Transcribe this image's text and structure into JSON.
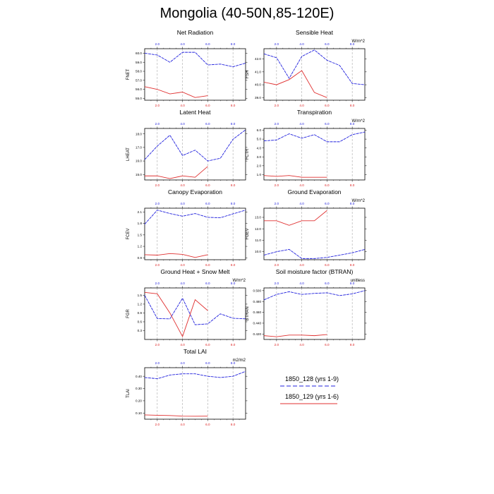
{
  "title": "Mongolia (40-50N,85-120E)",
  "colors": {
    "case1": "#2222dd",
    "case2": "#e03030",
    "frame": "#000000",
    "guide": "#999999"
  },
  "legend": {
    "items": [
      {
        "label": "1850_128 (yrs 1-9)",
        "color": "#2222dd",
        "style": "dashed"
      },
      {
        "label": "1850_129 (yrs 1-6)",
        "color": "#e03030",
        "style": "solid"
      }
    ]
  },
  "chart_data": [
    {
      "type": "line",
      "title": "Net Radiation",
      "ylabel": "FNET",
      "units": "",
      "xlim": [
        1,
        9
      ],
      "ylim": [
        54.8,
        60.5
      ],
      "x_top_ticks": [
        "2.0",
        "4.0",
        "6.0",
        "8.0"
      ],
      "x_bottom_ticks": [
        "2.0",
        "4.0",
        "6.0",
        "8.0"
      ],
      "yticks": [
        55.0,
        56.0,
        57.0,
        58.0,
        59.0,
        60.0
      ],
      "ytick_labels": [
        "55.0",
        "56.0",
        "57.0",
        "58.0",
        "59.0",
        "60.0"
      ],
      "series": [
        {
          "name": "1850_128 (yrs 1-9)",
          "x": [
            1,
            2,
            3,
            4,
            5,
            6,
            7,
            8,
            9
          ],
          "values": [
            60.0,
            59.8,
            59.0,
            60.1,
            60.1,
            58.7,
            58.8,
            58.5,
            58.9
          ]
        },
        {
          "name": "1850_129 (yrs 1-6)",
          "x": [
            1,
            2,
            3,
            4,
            5,
            6
          ],
          "values": [
            56.3,
            56.0,
            55.5,
            55.7,
            55.1,
            55.3
          ]
        }
      ]
    },
    {
      "type": "line",
      "title": "Sensible Heat",
      "ylabel": "FSH",
      "units": "W/m^2",
      "xlim": [
        1,
        9
      ],
      "ylim": [
        38.8,
        42.8
      ],
      "x_top_ticks": [
        "2.0",
        "4.0",
        "6.0",
        "8.0"
      ],
      "x_bottom_ticks": [
        "2.0",
        "4.0",
        "6.0",
        "8.0"
      ],
      "yticks": [
        39.0,
        40.0,
        41.0,
        42.0
      ],
      "ytick_labels": [
        "39.0",
        "40.0",
        "41.0",
        "42.0"
      ],
      "series": [
        {
          "name": "1850_128 (yrs 1-9)",
          "x": [
            1,
            2,
            3,
            4,
            5,
            6,
            7,
            8,
            9
          ],
          "values": [
            42.4,
            42.1,
            40.5,
            42.2,
            42.7,
            41.9,
            41.5,
            40.1,
            40.0
          ]
        },
        {
          "name": "1850_129 (yrs 1-6)",
          "x": [
            1,
            2,
            3,
            4,
            5,
            6
          ],
          "values": [
            40.2,
            40.0,
            40.4,
            41.1,
            39.4,
            39.0
          ]
        }
      ]
    },
    {
      "type": "line",
      "title": "Latent Heat",
      "ylabel": "LHEAT",
      "units": "",
      "xlim": [
        1,
        9
      ],
      "ylim": [
        14.6,
        18.4
      ],
      "x_top_ticks": [
        "2.0",
        "4.0",
        "6.0",
        "8.0"
      ],
      "x_bottom_ticks": [
        "2.0",
        "4.0",
        "6.0",
        "8.0"
      ],
      "yticks": [
        15.0,
        16.0,
        17.0,
        18.0
      ],
      "ytick_labels": [
        "15.0",
        "16.0",
        "17.0",
        "18.0"
      ],
      "series": [
        {
          "name": "1850_128 (yrs 1-9)",
          "x": [
            1,
            2,
            3,
            4,
            5,
            6,
            7,
            8,
            9
          ],
          "values": [
            16.1,
            17.1,
            17.9,
            16.4,
            16.8,
            16.0,
            16.2,
            17.6,
            18.3
          ]
        },
        {
          "name": "1850_129 (yrs 1-6)",
          "x": [
            1,
            2,
            3,
            4,
            5,
            6
          ],
          "values": [
            14.9,
            14.9,
            14.7,
            14.9,
            14.8,
            15.6
          ]
        }
      ]
    },
    {
      "type": "line",
      "title": "Transpiration",
      "ylabel": "FCTR",
      "units": "W/m^2",
      "xlim": [
        1,
        9
      ],
      "ylim": [
        0.4,
        6.2
      ],
      "x_top_ticks": [
        "2.0",
        "4.0",
        "6.0",
        "8.0"
      ],
      "x_bottom_ticks": [
        "2.0",
        "4.0",
        "6.0",
        "8.0"
      ],
      "yticks": [
        1.0,
        2.0,
        3.0,
        4.0,
        5.0,
        6.0
      ],
      "ytick_labels": [
        "1.0",
        "2.0",
        "3.0",
        "4.0",
        "5.0",
        "6.0"
      ],
      "series": [
        {
          "name": "1850_128 (yrs 1-9)",
          "x": [
            1,
            2,
            3,
            4,
            5,
            6,
            7,
            8,
            9
          ],
          "values": [
            4.8,
            4.9,
            5.6,
            5.1,
            5.5,
            4.7,
            4.7,
            5.5,
            5.8
          ]
        },
        {
          "name": "1850_129 (yrs 1-6)",
          "x": [
            1,
            2,
            3,
            4,
            5,
            6
          ],
          "values": [
            0.9,
            0.8,
            0.9,
            0.7,
            0.7,
            0.7
          ]
        }
      ]
    },
    {
      "type": "line",
      "title": "Canopy Evaporation",
      "ylabel": "FCEV",
      "units": "",
      "xlim": [
        1,
        9
      ],
      "ylim": [
        0.85,
        2.2
      ],
      "x_top_ticks": [
        "2.0",
        "4.0",
        "6.0",
        "8.0"
      ],
      "x_bottom_ticks": [
        "2.0",
        "4.0",
        "6.0",
        "8.0"
      ],
      "yticks": [
        0.9,
        1.2,
        1.5,
        1.8,
        2.1
      ],
      "ytick_labels": [
        "0.9",
        "1.2",
        "1.5",
        "1.8",
        "2.1"
      ],
      "series": [
        {
          "name": "1850_128 (yrs 1-9)",
          "x": [
            1,
            2,
            3,
            4,
            5,
            6,
            7,
            8,
            9
          ],
          "values": [
            1.78,
            2.15,
            2.06,
            1.99,
            2.06,
            1.96,
            1.95,
            2.05,
            2.15
          ]
        },
        {
          "name": "1850_129 (yrs 1-6)",
          "x": [
            1,
            2,
            3,
            4,
            5,
            6
          ],
          "values": [
            0.98,
            0.97,
            1.01,
            0.99,
            0.91,
            0.98
          ]
        }
      ]
    },
    {
      "type": "line",
      "title": "Ground Evaporation",
      "ylabel": "FGEV",
      "units": "W/m^2",
      "xlim": [
        1,
        9
      ],
      "ylim": [
        9.3,
        13.8
      ],
      "x_top_ticks": [
        "2.0",
        "4.0",
        "6.0",
        "8.0"
      ],
      "x_bottom_ticks": [
        "2.0",
        "4.0",
        "6.0",
        "8.0"
      ],
      "yticks": [
        10.0,
        11.0,
        12.0,
        13.0
      ],
      "ytick_labels": [
        "10.0",
        "11.0",
        "12.0",
        "13.0"
      ],
      "series": [
        {
          "name": "1850_128 (yrs 1-9)",
          "x": [
            1,
            2,
            3,
            4,
            5,
            6,
            7,
            8,
            9
          ],
          "values": [
            9.7,
            10.0,
            10.2,
            9.4,
            9.4,
            9.5,
            9.7,
            9.9,
            10.2
          ]
        },
        {
          "name": "1850_129 (yrs 1-6)",
          "x": [
            1,
            2,
            3,
            4,
            5,
            6
          ],
          "values": [
            12.7,
            12.7,
            12.3,
            12.7,
            12.7,
            13.6
          ]
        }
      ]
    },
    {
      "type": "line",
      "title": "Ground Heat + Snow Melt",
      "ylabel": "FGR",
      "units": "W/m^2",
      "xlim": [
        1,
        9
      ],
      "ylim": [
        0.0,
        1.75
      ],
      "x_top_ticks": [
        "2.0",
        "4.0",
        "6.0",
        "8.0"
      ],
      "x_bottom_ticks": [
        "2.0",
        "4.0",
        "6.0",
        "8.0"
      ],
      "yticks": [
        0.3,
        0.6,
        0.9,
        1.2,
        1.5
      ],
      "ytick_labels": [
        "0.3",
        "0.6",
        "0.9",
        "1.2",
        "1.5"
      ],
      "series": [
        {
          "name": "1850_128 (yrs 1-9)",
          "x": [
            1,
            2,
            3,
            4,
            5,
            6,
            7,
            8,
            9
          ],
          "values": [
            1.5,
            0.71,
            0.7,
            1.4,
            0.5,
            0.53,
            0.87,
            0.72,
            0.7
          ]
        },
        {
          "name": "1850_129 (yrs 1-6)",
          "x": [
            1,
            2,
            3,
            4,
            5,
            6
          ],
          "values": [
            1.6,
            1.55,
            0.9,
            0.1,
            1.35,
            0.98
          ]
        }
      ]
    },
    {
      "type": "line",
      "title": "Soil moisture factor (BTRAN)",
      "ylabel": "BTRAN",
      "units": "unitless",
      "xlim": [
        1,
        9
      ],
      "ylim": [
        0.41,
        0.505
      ],
      "x_top_ticks": [
        "2.0",
        "4.0",
        "6.0",
        "8.0"
      ],
      "x_bottom_ticks": [
        "2.0",
        "4.0",
        "6.0",
        "8.0"
      ],
      "yticks": [
        0.42,
        0.44,
        0.46,
        0.48,
        0.5
      ],
      "ytick_labels": [
        "0.420",
        "0.440",
        "0.460",
        "0.480",
        "0.500"
      ],
      "series": [
        {
          "name": "1850_128 (yrs 1-9)",
          "x": [
            1,
            2,
            3,
            4,
            5,
            6,
            7,
            8,
            9
          ],
          "values": [
            0.483,
            0.493,
            0.498,
            0.493,
            0.495,
            0.496,
            0.491,
            0.494,
            0.5
          ]
        },
        {
          "name": "1850_129 (yrs 1-6)",
          "x": [
            1,
            2,
            3,
            4,
            5,
            6
          ],
          "values": [
            0.417,
            0.415,
            0.418,
            0.418,
            0.417,
            0.419
          ]
        }
      ]
    },
    {
      "type": "line",
      "title": "Total LAI",
      "ylabel": "TLAI",
      "units": "m2/m2",
      "xlim": [
        1,
        9
      ],
      "ylim": [
        0.05,
        0.47
      ],
      "x_top_ticks": [
        "2.0",
        "4.0",
        "6.0",
        "8.0"
      ],
      "x_bottom_ticks": [
        "2.0",
        "4.0",
        "6.0",
        "8.0"
      ],
      "yticks": [
        0.1,
        0.2,
        0.3,
        0.4
      ],
      "ytick_labels": [
        "0.10",
        "0.20",
        "0.30",
        "0.40"
      ],
      "series": [
        {
          "name": "1850_128 (yrs 1-9)",
          "x": [
            1,
            2,
            3,
            4,
            5,
            6,
            7,
            8,
            9
          ],
          "values": [
            0.39,
            0.38,
            0.41,
            0.42,
            0.42,
            0.4,
            0.39,
            0.4,
            0.44
          ]
        },
        {
          "name": "1850_129 (yrs 1-6)",
          "x": [
            1,
            2,
            3,
            4,
            5,
            6
          ],
          "values": [
            0.085,
            0.082,
            0.08,
            0.075,
            0.074,
            0.075
          ]
        }
      ]
    }
  ]
}
